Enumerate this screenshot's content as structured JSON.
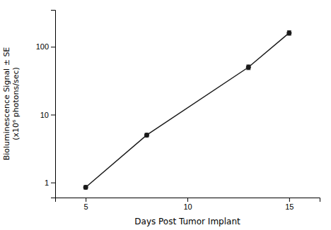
{
  "chart_data": {
    "type": "line",
    "x": [
      5,
      8,
      13,
      15
    ],
    "values": [
      0.85,
      5.0,
      50.0,
      160.0
    ],
    "error_low": [
      0.05,
      0.3,
      4.0,
      12.0
    ],
    "error_high": [
      0.05,
      0.3,
      4.0,
      12.0
    ],
    "xlabel": "Days Post Tumor Implant",
    "ylabel": "Bioluminescence Signal ± SE\n(x10⁶ photons/sec)",
    "xlim": [
      3.5,
      16.5
    ],
    "ylim": [
      0.6,
      350
    ],
    "xticks": [
      5,
      10,
      15
    ],
    "yticks": [
      1,
      10,
      100
    ],
    "log": "y",
    "color": "#1a1a1a",
    "marker": "circle"
  }
}
